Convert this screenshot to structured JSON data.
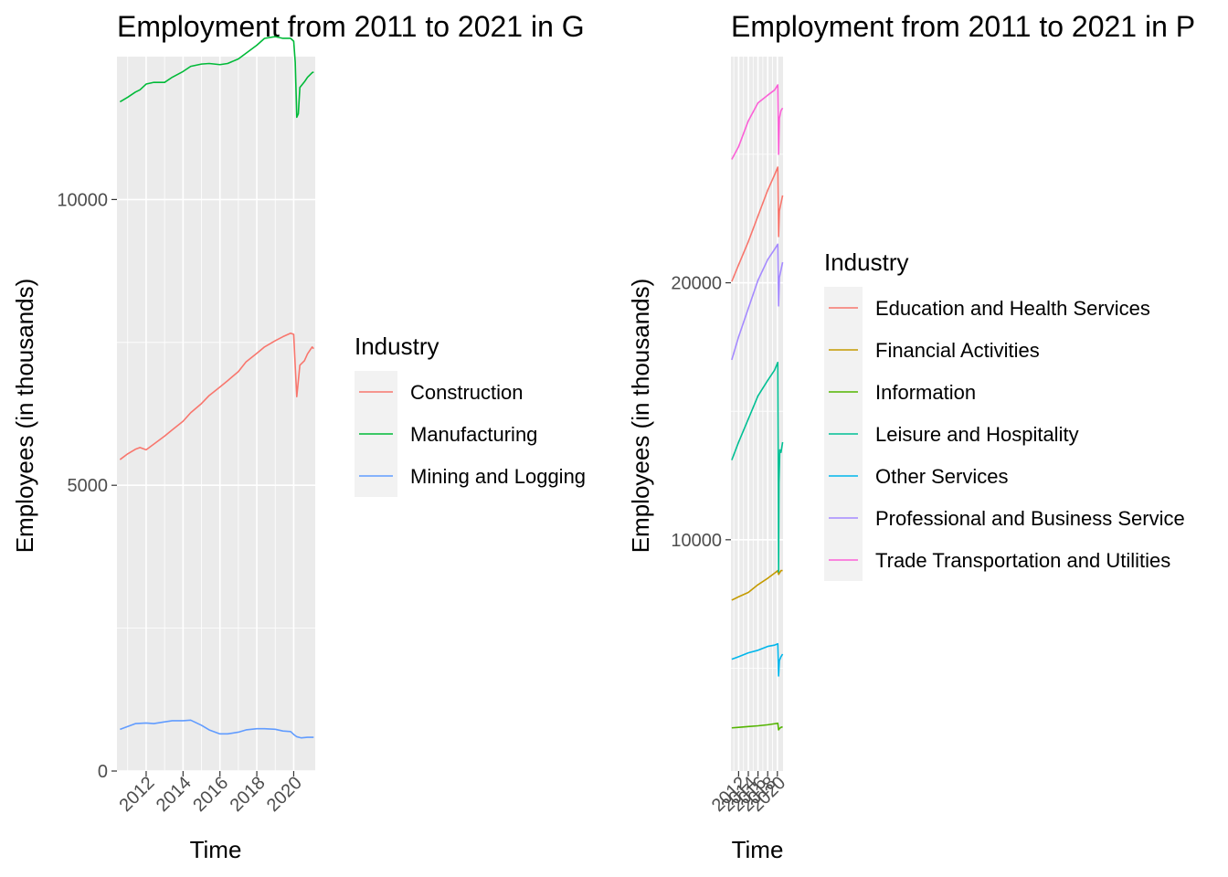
{
  "chart_data": [
    {
      "type": "line",
      "title": "Employment from 2011 to 2021 in G",
      "xlabel": "Time",
      "ylabel": "Employees (in thousands)",
      "xlim": [
        "2010-06",
        "2021-03"
      ],
      "ylim": [
        0,
        12500
      ],
      "x_ticks": [
        "2012",
        "2014",
        "2016",
        "2018",
        "2020"
      ],
      "y_ticks": [
        "0",
        "5000",
        "10000"
      ],
      "legend": {
        "title": "Industry",
        "position": "right"
      },
      "grid": true,
      "series": [
        {
          "name": "Construction",
          "color": "#F8766D",
          "points": [
            [
              "2010-08",
              5450
            ],
            [
              "2011-01",
              5550
            ],
            [
              "2011-06",
              5630
            ],
            [
              "2011-09",
              5660
            ],
            [
              "2012-01",
              5620
            ],
            [
              "2012-06",
              5720
            ],
            [
              "2013-01",
              5860
            ],
            [
              "2013-06",
              5970
            ],
            [
              "2014-01",
              6120
            ],
            [
              "2014-06",
              6270
            ],
            [
              "2015-01",
              6430
            ],
            [
              "2015-06",
              6570
            ],
            [
              "2016-01",
              6720
            ],
            [
              "2016-06",
              6830
            ],
            [
              "2017-01",
              6990
            ],
            [
              "2017-06",
              7160
            ],
            [
              "2018-01",
              7310
            ],
            [
              "2018-06",
              7420
            ],
            [
              "2019-01",
              7530
            ],
            [
              "2019-06",
              7600
            ],
            [
              "2019-11",
              7660
            ],
            [
              "2020-01",
              7640
            ],
            [
              "2020-02",
              7080
            ],
            [
              "2020-03",
              6550
            ],
            [
              "2020-05",
              7100
            ],
            [
              "2020-08",
              7180
            ],
            [
              "2020-10",
              7300
            ],
            [
              "2021-01",
              7420
            ],
            [
              "2021-02",
              7390
            ]
          ]
        },
        {
          "name": "Manufacturing",
          "color": "#00BA38",
          "points": [
            [
              "2010-08",
              11710
            ],
            [
              "2011-01",
              11790
            ],
            [
              "2011-06",
              11880
            ],
            [
              "2011-09",
              11920
            ],
            [
              "2012-01",
              12020
            ],
            [
              "2012-06",
              12050
            ],
            [
              "2013-01",
              12050
            ],
            [
              "2013-06",
              12140
            ],
            [
              "2014-01",
              12240
            ],
            [
              "2014-06",
              12330
            ],
            [
              "2015-01",
              12370
            ],
            [
              "2015-06",
              12380
            ],
            [
              "2016-01",
              12360
            ],
            [
              "2016-06",
              12380
            ],
            [
              "2017-01",
              12460
            ],
            [
              "2017-06",
              12560
            ],
            [
              "2018-01",
              12700
            ],
            [
              "2018-06",
              12820
            ],
            [
              "2019-01",
              12850
            ],
            [
              "2019-06",
              12820
            ],
            [
              "2019-11",
              12820
            ],
            [
              "2020-01",
              12770
            ],
            [
              "2020-02",
              12400
            ],
            [
              "2020-03",
              11440
            ],
            [
              "2020-04",
              11500
            ],
            [
              "2020-05",
              11960
            ],
            [
              "2020-08",
              12060
            ],
            [
              "2020-10",
              12140
            ],
            [
              "2021-01",
              12220
            ],
            [
              "2021-02",
              12230
            ]
          ]
        },
        {
          "name": "Mining and Logging",
          "color": "#619CFF",
          "points": [
            [
              "2010-08",
              730
            ],
            [
              "2011-01",
              780
            ],
            [
              "2011-06",
              830
            ],
            [
              "2012-01",
              840
            ],
            [
              "2012-06",
              830
            ],
            [
              "2013-01",
              860
            ],
            [
              "2013-06",
              880
            ],
            [
              "2014-01",
              880
            ],
            [
              "2014-06",
              890
            ],
            [
              "2015-01",
              800
            ],
            [
              "2015-06",
              720
            ],
            [
              "2016-01",
              650
            ],
            [
              "2016-06",
              650
            ],
            [
              "2017-01",
              680
            ],
            [
              "2017-06",
              720
            ],
            [
              "2018-01",
              740
            ],
            [
              "2018-06",
              740
            ],
            [
              "2019-01",
              730
            ],
            [
              "2019-06",
              700
            ],
            [
              "2019-11",
              690
            ],
            [
              "2020-01",
              640
            ],
            [
              "2020-03",
              600
            ],
            [
              "2020-06",
              580
            ],
            [
              "2020-10",
              590
            ],
            [
              "2021-02",
              590
            ]
          ]
        }
      ]
    },
    {
      "type": "line",
      "title": "Employment from 2011 to 2021 in P",
      "xlabel": "Time",
      "ylabel": "Employees (in thousands)",
      "xlim": [
        "2010-06",
        "2021-03"
      ],
      "ylim": [
        1000,
        28800
      ],
      "x_ticks": [
        "2012",
        "2014",
        "2016",
        "2018",
        "2020"
      ],
      "y_ticks": [
        "10000",
        "20000"
      ],
      "legend": {
        "title": "Industry",
        "position": "right"
      },
      "grid": true,
      "series": [
        {
          "name": "Education and Health Services",
          "color": "#F8766D",
          "points": [
            [
              "2010-08",
              20050
            ],
            [
              "2012-01",
              20700
            ],
            [
              "2014-01",
              21600
            ],
            [
              "2016-01",
              22600
            ],
            [
              "2018-01",
              23600
            ],
            [
              "2019-06",
              24200
            ],
            [
              "2020-02",
              24500
            ],
            [
              "2020-04",
              21800
            ],
            [
              "2020-06",
              22800
            ],
            [
              "2020-10",
              23100
            ],
            [
              "2021-02",
              23400
            ]
          ]
        },
        {
          "name": "Financial Activities",
          "color": "#C49A00",
          "points": [
            [
              "2010-08",
              7650
            ],
            [
              "2012-01",
              7780
            ],
            [
              "2014-01",
              7950
            ],
            [
              "2016-01",
              8250
            ],
            [
              "2018-01",
              8500
            ],
            [
              "2019-06",
              8700
            ],
            [
              "2020-02",
              8800
            ],
            [
              "2020-04",
              8650
            ],
            [
              "2020-06",
              8700
            ],
            [
              "2020-10",
              8800
            ],
            [
              "2021-02",
              8800
            ]
          ]
        },
        {
          "name": "Information",
          "color": "#53B400",
          "points": [
            [
              "2010-08",
              2680
            ],
            [
              "2012-01",
              2700
            ],
            [
              "2014-01",
              2730
            ],
            [
              "2016-01",
              2760
            ],
            [
              "2018-01",
              2800
            ],
            [
              "2019-06",
              2840
            ],
            [
              "2020-02",
              2860
            ],
            [
              "2020-04",
              2600
            ],
            [
              "2020-06",
              2650
            ],
            [
              "2020-10",
              2700
            ],
            [
              "2021-02",
              2720
            ]
          ]
        },
        {
          "name": "Leisure and Hospitality",
          "color": "#00C094",
          "points": [
            [
              "2010-08",
              13100
            ],
            [
              "2012-01",
              13800
            ],
            [
              "2014-01",
              14700
            ],
            [
              "2016-01",
              15600
            ],
            [
              "2018-01",
              16200
            ],
            [
              "2019-06",
              16600
            ],
            [
              "2020-02",
              16900
            ],
            [
              "2020-04",
              8750
            ],
            [
              "2020-05",
              12200
            ],
            [
              "2020-07",
              13500
            ],
            [
              "2020-10",
              13400
            ],
            [
              "2021-02",
              13800
            ]
          ]
        },
        {
          "name": "Other Services",
          "color": "#00B6EB",
          "points": [
            [
              "2010-08",
              5350
            ],
            [
              "2012-01",
              5450
            ],
            [
              "2014-01",
              5600
            ],
            [
              "2016-01",
              5700
            ],
            [
              "2018-01",
              5850
            ],
            [
              "2019-06",
              5900
            ],
            [
              "2020-02",
              5950
            ],
            [
              "2020-04",
              4700
            ],
            [
              "2020-06",
              5300
            ],
            [
              "2020-10",
              5450
            ],
            [
              "2021-02",
              5550
            ]
          ]
        },
        {
          "name": "Professional and Business Service",
          "color": "#A58AFF",
          "points": [
            [
              "2010-08",
              17000
            ],
            [
              "2012-01",
              17900
            ],
            [
              "2014-01",
              19000
            ],
            [
              "2016-01",
              20100
            ],
            [
              "2018-01",
              20900
            ],
            [
              "2019-06",
              21300
            ],
            [
              "2020-02",
              21500
            ],
            [
              "2020-04",
              19100
            ],
            [
              "2020-06",
              20200
            ],
            [
              "2020-10",
              20500
            ],
            [
              "2021-02",
              20800
            ]
          ]
        },
        {
          "name": "Trade Transportation and Utilities",
          "color": "#FB61D7",
          "points": [
            [
              "2010-08",
              24800
            ],
            [
              "2012-01",
              25300
            ],
            [
              "2014-01",
              26300
            ],
            [
              "2016-01",
              27000
            ],
            [
              "2018-01",
              27300
            ],
            [
              "2019-06",
              27500
            ],
            [
              "2020-02",
              27700
            ],
            [
              "2020-04",
              25000
            ],
            [
              "2020-06",
              26400
            ],
            [
              "2020-10",
              26700
            ],
            [
              "2021-02",
              26800
            ]
          ]
        }
      ]
    }
  ]
}
